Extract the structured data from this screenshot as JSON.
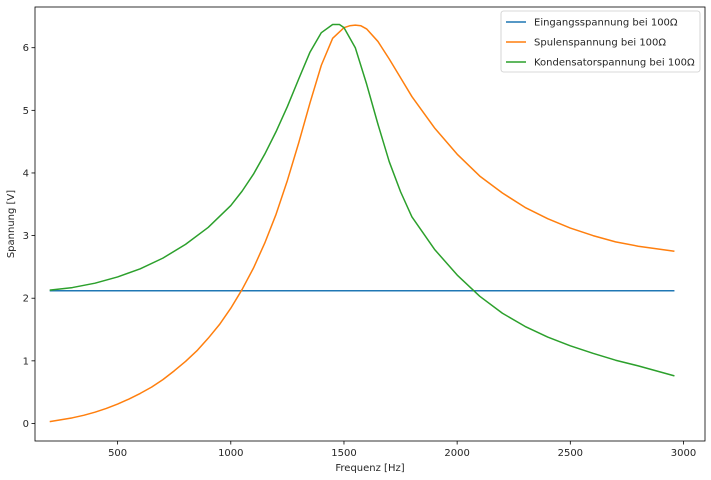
{
  "chart_data": {
    "type": "line",
    "title": "",
    "xlabel": "Frequenz [Hz]",
    "ylabel": "Spannung [V]",
    "xlim": [
      135,
      3095
    ],
    "ylim": [
      -0.28,
      6.65
    ],
    "xticks": [
      500,
      1000,
      1500,
      2000,
      2500,
      3000
    ],
    "yticks": [
      0,
      1,
      2,
      3,
      4,
      5,
      6
    ],
    "grid": false,
    "legend_position": "top-right",
    "series": [
      {
        "name": "Eingangsspannung bei 100Ω",
        "color": "#1f77b4",
        "x": [
          200,
          2960
        ],
        "y": [
          2.12,
          2.12
        ]
      },
      {
        "name": "Spulenspannung bei 100Ω",
        "color": "#ff7f0e",
        "x": [
          200,
          250,
          300,
          350,
          400,
          450,
          500,
          550,
          600,
          650,
          700,
          750,
          800,
          850,
          900,
          950,
          1000,
          1050,
          1100,
          1150,
          1200,
          1250,
          1300,
          1350,
          1400,
          1450,
          1500,
          1525,
          1550,
          1575,
          1600,
          1650,
          1700,
          1750,
          1800,
          1900,
          2000,
          2100,
          2200,
          2300,
          2400,
          2500,
          2600,
          2700,
          2800,
          2960
        ],
        "y": [
          0.03,
          0.06,
          0.09,
          0.13,
          0.18,
          0.24,
          0.31,
          0.39,
          0.48,
          0.58,
          0.7,
          0.84,
          0.99,
          1.16,
          1.36,
          1.58,
          1.84,
          2.14,
          2.48,
          2.88,
          3.34,
          3.88,
          4.48,
          5.12,
          5.72,
          6.15,
          6.32,
          6.35,
          6.36,
          6.35,
          6.3,
          6.1,
          5.82,
          5.52,
          5.22,
          4.72,
          4.3,
          3.95,
          3.68,
          3.45,
          3.27,
          3.12,
          3.0,
          2.9,
          2.83,
          2.75
        ]
      },
      {
        "name": "Kondensatorspannung bei 100Ω",
        "color": "#2ca02c",
        "x": [
          200,
          300,
          400,
          500,
          600,
          700,
          800,
          900,
          1000,
          1050,
          1100,
          1150,
          1200,
          1250,
          1300,
          1350,
          1400,
          1450,
          1480,
          1500,
          1550,
          1600,
          1650,
          1700,
          1750,
          1800,
          1900,
          2000,
          2100,
          2200,
          2300,
          2400,
          2500,
          2600,
          2700,
          2800,
          2960
        ],
        "y": [
          2.13,
          2.17,
          2.24,
          2.34,
          2.47,
          2.64,
          2.86,
          3.13,
          3.48,
          3.71,
          3.98,
          4.3,
          4.66,
          5.06,
          5.5,
          5.93,
          6.24,
          6.37,
          6.37,
          6.32,
          6.0,
          5.42,
          4.78,
          4.18,
          3.7,
          3.3,
          2.78,
          2.37,
          2.03,
          1.76,
          1.55,
          1.38,
          1.24,
          1.12,
          1.01,
          0.92,
          0.76
        ]
      }
    ]
  }
}
